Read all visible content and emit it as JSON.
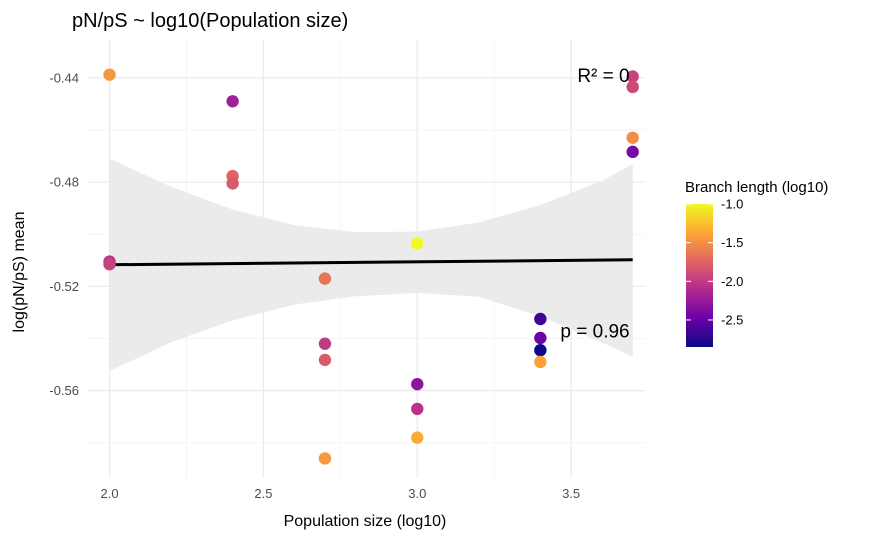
{
  "chart_data": {
    "type": "scatter",
    "title": "pN/pS ~ log10(Population size)",
    "xlabel": "Population size (log10)",
    "ylabel": "log(pN/pS) mean",
    "xlim": [
      1.93,
      3.74
    ],
    "ylim": [
      -0.5935,
      -0.4255
    ],
    "x_ticks": [
      {
        "value": 2.0,
        "label": "2.0"
      },
      {
        "value": 2.5,
        "label": "2.5"
      },
      {
        "value": 3.0,
        "label": "3.0"
      },
      {
        "value": 3.5,
        "label": "3.5"
      }
    ],
    "y_ticks": [
      {
        "value": -0.44,
        "label": "-0.44"
      },
      {
        "value": -0.48,
        "label": "-0.48"
      },
      {
        "value": -0.52,
        "label": "-0.52"
      },
      {
        "value": -0.56,
        "label": "-0.56"
      }
    ],
    "grid": true,
    "points": [
      {
        "x": 2.0,
        "y": -0.4388,
        "color_value": -1.45
      },
      {
        "x": 2.0,
        "y": -0.5105,
        "color_value": -2.05
      },
      {
        "x": 2.0,
        "y": -0.5115,
        "color_value": -1.95
      },
      {
        "x": 2.4,
        "y": -0.449,
        "color_value": -2.2
      },
      {
        "x": 2.4,
        "y": -0.4777,
        "color_value": -1.75
      },
      {
        "x": 2.4,
        "y": -0.4805,
        "color_value": -1.8
      },
      {
        "x": 2.7,
        "y": -0.517,
        "color_value": -1.65
      },
      {
        "x": 2.7,
        "y": -0.542,
        "color_value": -2.0
      },
      {
        "x": 2.7,
        "y": -0.5482,
        "color_value": -1.8
      },
      {
        "x": 2.7,
        "y": -0.586,
        "color_value": -1.45
      },
      {
        "x": 3.0,
        "y": -0.5035,
        "color_value": -1.0
      },
      {
        "x": 3.0,
        "y": -0.5575,
        "color_value": -2.3
      },
      {
        "x": 3.0,
        "y": -0.567,
        "color_value": -2.05
      },
      {
        "x": 3.0,
        "y": -0.578,
        "color_value": -1.35
      },
      {
        "x": 3.4,
        "y": -0.5325,
        "color_value": -2.65
      },
      {
        "x": 3.4,
        "y": -0.5398,
        "color_value": -2.45
      },
      {
        "x": 3.4,
        "y": -0.5445,
        "color_value": -2.85
      },
      {
        "x": 3.4,
        "y": -0.549,
        "color_value": -1.4
      },
      {
        "x": 3.7,
        "y": -0.4395,
        "color_value": -1.95
      },
      {
        "x": 3.7,
        "y": -0.4435,
        "color_value": -1.9
      },
      {
        "x": 3.7,
        "y": -0.463,
        "color_value": -1.5
      },
      {
        "x": 3.7,
        "y": -0.4684,
        "color_value": -2.4
      }
    ],
    "fit_line": {
      "x": [
        2.0,
        3.7
      ],
      "y": [
        -0.5117,
        -0.5098
      ]
    },
    "confidence_band": {
      "x": [
        2.0,
        2.2,
        2.4,
        2.6,
        2.8,
        3.0,
        3.2,
        3.4,
        3.6,
        3.7
      ],
      "upper": [
        -0.471,
        -0.4818,
        -0.4905,
        -0.4965,
        -0.4992,
        -0.499,
        -0.4955,
        -0.4888,
        -0.4795,
        -0.473
      ],
      "lower": [
        -0.5525,
        -0.5415,
        -0.533,
        -0.527,
        -0.5238,
        -0.5225,
        -0.524,
        -0.5315,
        -0.5415,
        -0.547
      ]
    },
    "annotations": [
      {
        "text": "R² = 0",
        "x": 3.69,
        "y": -0.439
      },
      {
        "text": "p = 0.96",
        "x": 3.69,
        "y": -0.537
      }
    ],
    "legend": {
      "title": "Branch length (log10)",
      "placement": "right",
      "type": "colorbar",
      "range": [
        -2.85,
        -1.0
      ],
      "ticks": [
        {
          "value": -1.0,
          "label": "-1.0"
        },
        {
          "value": -1.5,
          "label": "-1.5"
        },
        {
          "value": -2.0,
          "label": "-2.0"
        },
        {
          "value": -2.5,
          "label": "-2.5"
        }
      ]
    },
    "colors": {
      "fit_line": "#000000",
      "band": "#ebebeb",
      "grid_major": "#ebebeb",
      "grid_minor": "#f5f5f5",
      "palette": [
        "#0d0887",
        "#6a00a8",
        "#b12a90",
        "#e16462",
        "#fca636",
        "#f0f921"
      ]
    }
  }
}
